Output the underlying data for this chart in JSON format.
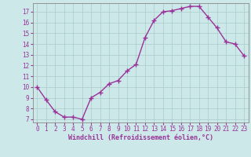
{
  "x": [
    0,
    1,
    2,
    3,
    4,
    5,
    6,
    7,
    8,
    9,
    10,
    11,
    12,
    13,
    14,
    15,
    16,
    17,
    18,
    19,
    20,
    21,
    22,
    23
  ],
  "y": [
    10,
    8.8,
    7.7,
    7.2,
    7.2,
    7.0,
    9.0,
    9.5,
    10.3,
    10.6,
    11.5,
    12.1,
    14.6,
    16.2,
    17.0,
    17.1,
    17.3,
    17.5,
    17.5,
    16.5,
    15.5,
    14.2,
    14.0,
    12.9
  ],
  "line_color": "#993399",
  "marker": "+",
  "marker_size": 4,
  "marker_linewidth": 1.0,
  "bg_color": "#cce8e8",
  "grid_color": "#aacccc",
  "xlabel": "Windchill (Refroidissement éolien,°C)",
  "xlabel_color": "#993399",
  "tick_color": "#993399",
  "xlim_min": -0.5,
  "xlim_max": 23.5,
  "ylim_min": 6.7,
  "ylim_max": 17.8,
  "yticks": [
    7,
    8,
    9,
    10,
    11,
    12,
    13,
    14,
    15,
    16,
    17
  ],
  "xticks": [
    0,
    1,
    2,
    3,
    4,
    5,
    6,
    7,
    8,
    9,
    10,
    11,
    12,
    13,
    14,
    15,
    16,
    17,
    18,
    19,
    20,
    21,
    22,
    23
  ],
  "line_width": 1.0,
  "tick_fontsize": 5.5,
  "xlabel_fontsize": 6.0
}
